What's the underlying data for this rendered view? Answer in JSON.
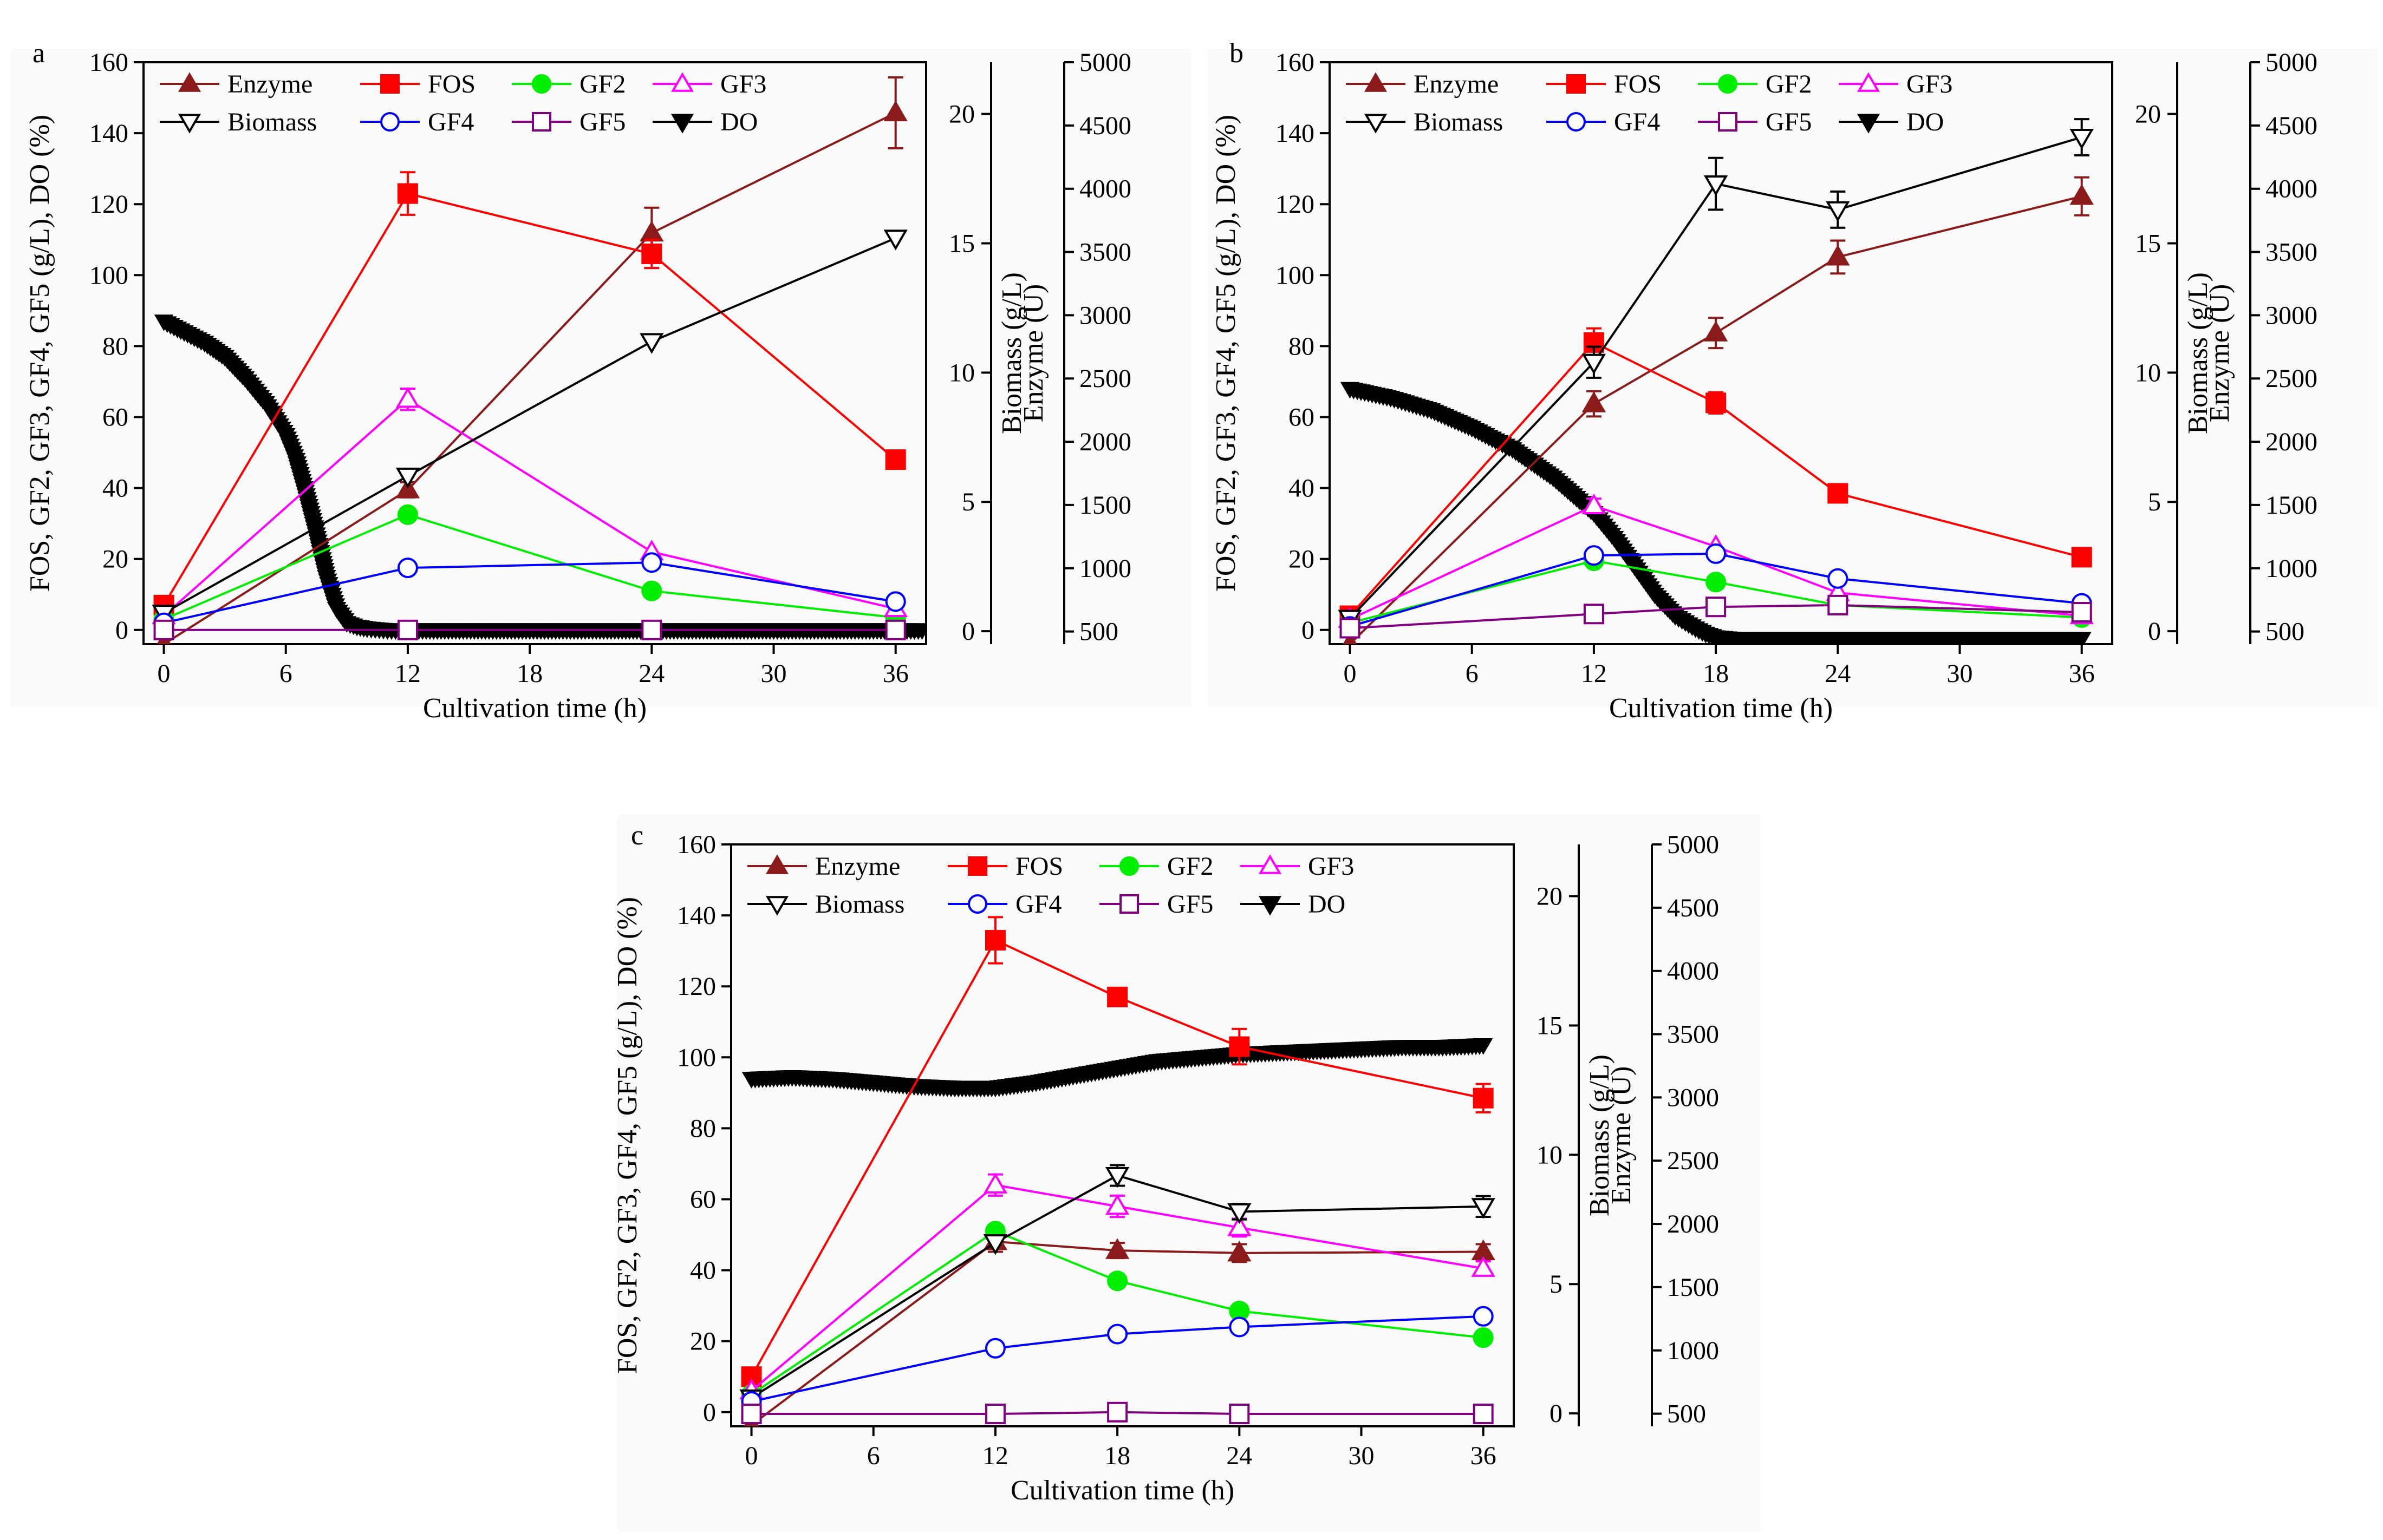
{
  "figure": {
    "series_styles": {
      "Enzyme": {
        "color": "#8b1a1a",
        "marker": "triangle-up",
        "filled": true
      },
      "FOS": {
        "color": "#ff0000",
        "marker": "square",
        "filled": true
      },
      "GF2": {
        "color": "#00ee00",
        "marker": "circle",
        "filled": true
      },
      "GF3": {
        "color": "#ff00ff",
        "marker": "triangle-up",
        "filled": false
      },
      "Biomass": {
        "color": "#000000",
        "marker": "triangle-down",
        "filled": false
      },
      "GF4": {
        "color": "#0000ff",
        "marker": "circle",
        "filled": false
      },
      "GF5": {
        "color": "#800080",
        "marker": "square",
        "filled": false
      },
      "DO": {
        "color": "#000000",
        "marker": "triangle-down",
        "filled": true
      }
    }
  },
  "chart_data": [
    {
      "type": "line",
      "panel": "a",
      "xlabel": "Cultivation time (h)",
      "ylabel_left": "FOS, GF2, GF3, GF4, GF5 (g/L), DO (%)",
      "ylabel_biomass": "Biomass (g/L)",
      "ylabel_enzyme": "Enzyme (U)",
      "xlim": [
        -1,
        37.5
      ],
      "xticks": [
        "0",
        "6",
        "12",
        "18",
        "24",
        "30",
        "36"
      ],
      "ylim_left": [
        -4,
        160
      ],
      "yticks_left": [
        "0",
        "20",
        "40",
        "60",
        "80",
        "100",
        "120",
        "140",
        "160"
      ],
      "ylim_biomass": [
        -0.5,
        22
      ],
      "yticks_biomass": [
        "0",
        "5",
        "10",
        "15",
        "20"
      ],
      "ylim_enzyme": [
        400,
        5000
      ],
      "yticks_enzyme": [
        "500",
        "1000",
        "1500",
        "2000",
        "2500",
        "3000",
        "3500",
        "4000",
        "4500",
        "5000"
      ],
      "legend_rows": [
        [
          "Enzyme",
          "FOS",
          "GF2",
          "GF3"
        ],
        [
          "Biomass",
          "GF4",
          "GF5",
          "DO"
        ]
      ],
      "series": [
        {
          "name": "Enzyme",
          "axis": "enzyme",
          "x": [
            0,
            12,
            24,
            36
          ],
          "values": [
            400,
            1620,
            3650,
            4600
          ],
          "err": [
            0,
            60,
            200,
            280
          ]
        },
        {
          "name": "FOS",
          "axis": "left",
          "x": [
            0,
            12,
            24,
            36
          ],
          "values": [
            7,
            123,
            106,
            48
          ],
          "err": [
            0,
            6,
            4,
            0
          ]
        },
        {
          "name": "GF2",
          "axis": "left",
          "x": [
            0,
            12,
            24,
            36
          ],
          "values": [
            3,
            32.5,
            11,
            3.5
          ],
          "err": [
            0,
            0,
            0,
            0
          ]
        },
        {
          "name": "GF3",
          "axis": "left",
          "x": [
            0,
            12,
            24,
            36
          ],
          "values": [
            4,
            65,
            22,
            6
          ],
          "err": [
            0,
            3,
            0,
            0
          ]
        },
        {
          "name": "Biomass",
          "axis": "biomass",
          "x": [
            0,
            12,
            24,
            36
          ],
          "values": [
            0.7,
            6.0,
            11.2,
            15.2
          ],
          "err": [
            0,
            0,
            0,
            0
          ]
        },
        {
          "name": "GF4",
          "axis": "left",
          "x": [
            0,
            12,
            24,
            36
          ],
          "values": [
            2,
            17.5,
            19,
            8
          ],
          "err": [
            0,
            0,
            0,
            0
          ]
        },
        {
          "name": "GF5",
          "axis": "left",
          "x": [
            0,
            12,
            24,
            36
          ],
          "values": [
            0,
            0,
            0,
            0
          ],
          "err": [
            0,
            0,
            0,
            0
          ]
        },
        {
          "name": "DO",
          "axis": "left",
          "x": [
            0,
            1,
            2,
            3,
            4,
            5,
            6,
            6.5,
            7,
            7.5,
            8,
            8.5,
            9,
            9.5,
            10,
            11,
            12,
            14,
            16,
            18,
            20,
            22,
            24,
            26,
            28,
            30,
            32,
            34,
            36,
            37.3
          ],
          "values": [
            87,
            84,
            81,
            77,
            71,
            64,
            55,
            48,
            38,
            27,
            15,
            6,
            2,
            1,
            0.5,
            0,
            0,
            0,
            0,
            0,
            0,
            0,
            0,
            0,
            0,
            0,
            0,
            0,
            0,
            0
          ]
        }
      ]
    },
    {
      "type": "line",
      "panel": "b",
      "xlabel": "Cultivation time (h)",
      "ylabel_left": "FOS, GF2, GF3, GF4, GF5 (g/L), DO (%)",
      "ylabel_biomass": "Biomass (g/L)",
      "ylabel_enzyme": "Enzyme (U)",
      "xlim": [
        -1,
        37.5
      ],
      "xticks": [
        "0",
        "6",
        "12",
        "18",
        "24",
        "30",
        "36"
      ],
      "ylim_left": [
        -4,
        160
      ],
      "yticks_left": [
        "0",
        "20",
        "40",
        "60",
        "80",
        "100",
        "120",
        "140",
        "160"
      ],
      "ylim_biomass": [
        -0.5,
        22
      ],
      "yticks_biomass": [
        "0",
        "5",
        "10",
        "15",
        "20"
      ],
      "ylim_enzyme": [
        400,
        5000
      ],
      "yticks_enzyme": [
        "500",
        "1000",
        "1500",
        "2000",
        "2500",
        "3000",
        "3500",
        "4000",
        "4500",
        "5000"
      ],
      "legend_rows": [
        [
          "Enzyme",
          "FOS",
          "GF2",
          "GF3"
        ],
        [
          "Biomass",
          "GF4",
          "GF5",
          "DO"
        ]
      ],
      "series": [
        {
          "name": "Enzyme",
          "axis": "enzyme",
          "x": [
            0,
            12,
            18,
            24,
            36
          ],
          "values": [
            400,
            2300,
            2860,
            3460,
            3940
          ],
          "err": [
            0,
            100,
            120,
            130,
            150
          ]
        },
        {
          "name": "FOS",
          "axis": "left",
          "x": [
            0,
            12,
            18,
            24,
            36
          ],
          "values": [
            4,
            81,
            64,
            38.5,
            20.5
          ],
          "err": [
            0,
            4,
            3,
            0,
            0
          ]
        },
        {
          "name": "GF2",
          "axis": "left",
          "x": [
            0,
            12,
            18,
            24,
            36
          ],
          "values": [
            2,
            19.5,
            13.5,
            7,
            3.5
          ],
          "err": [
            0,
            0,
            0,
            0,
            0
          ]
        },
        {
          "name": "GF3",
          "axis": "left",
          "x": [
            0,
            12,
            18,
            24,
            36
          ],
          "values": [
            3,
            35,
            23.5,
            10.5,
            4
          ],
          "err": [
            0,
            2,
            0,
            0,
            0
          ]
        },
        {
          "name": "Biomass",
          "axis": "biomass",
          "x": [
            0,
            12,
            18,
            24,
            36
          ],
          "values": [
            0.5,
            10.4,
            17.3,
            16.3,
            19.1
          ],
          "err": [
            0,
            0.6,
            1.0,
            0.7,
            0.7
          ]
        },
        {
          "name": "GF4",
          "axis": "left",
          "x": [
            0,
            12,
            18,
            24,
            36
          ],
          "values": [
            1,
            21,
            21.5,
            14.5,
            7.5
          ],
          "err": [
            0,
            0,
            0,
            0,
            0
          ]
        },
        {
          "name": "GF5",
          "axis": "left",
          "x": [
            0,
            12,
            18,
            24,
            36
          ],
          "values": [
            0.5,
            4.5,
            6.5,
            7,
            5
          ],
          "err": [
            0,
            0,
            0,
            0,
            0
          ]
        },
        {
          "name": "DO",
          "axis": "left",
          "x": [
            0,
            2,
            4,
            6,
            8,
            10,
            12,
            13,
            14,
            15,
            16,
            17,
            17.5,
            18,
            19,
            20,
            22,
            24,
            26,
            28,
            30,
            32,
            34,
            36
          ],
          "values": [
            68,
            65.5,
            62,
            57,
            51,
            43,
            33,
            26,
            18,
            10,
            4,
            0.5,
            -1,
            -2,
            -2.5,
            -2.5,
            -2.5,
            -2.5,
            -2.5,
            -2.5,
            -2.5,
            -2.5,
            -2.5,
            -2.5
          ]
        }
      ]
    },
    {
      "type": "line",
      "panel": "c",
      "xlabel": "Cultivation time (h)",
      "ylabel_left": "FOS, GF2, GF3, GF4, GF5 (g/L), DO (%)",
      "ylabel_biomass": "Biomass (g/L)",
      "ylabel_enzyme": "Enzyme (U)",
      "xlim": [
        -1,
        37.5
      ],
      "xticks": [
        "0",
        "6",
        "12",
        "18",
        "24",
        "30",
        "36"
      ],
      "ylim_left": [
        -4,
        160
      ],
      "yticks_left": [
        "0",
        "20",
        "40",
        "60",
        "80",
        "100",
        "120",
        "140",
        "160"
      ],
      "ylim_biomass": [
        -0.5,
        22
      ],
      "yticks_biomass": [
        "0",
        "5",
        "10",
        "15",
        "20"
      ],
      "ylim_enzyme": [
        400,
        5000
      ],
      "yticks_enzyme": [
        "500",
        "1000",
        "1500",
        "2000",
        "2500",
        "3000",
        "3500",
        "4000",
        "4500",
        "5000"
      ],
      "legend_rows": [
        [
          "Enzyme",
          "FOS",
          "GF2",
          "GF3"
        ],
        [
          "Biomass",
          "GF4",
          "GF5",
          "DO"
        ]
      ],
      "series": [
        {
          "name": "Enzyme",
          "axis": "enzyme",
          "x": [
            0,
            12,
            18,
            24,
            36
          ],
          "values": [
            410,
            1860,
            1790,
            1770,
            1780
          ],
          "err": [
            0,
            80,
            60,
            70,
            60
          ]
        },
        {
          "name": "FOS",
          "axis": "left",
          "x": [
            0,
            12,
            18,
            24,
            36
          ],
          "values": [
            10,
            133,
            117,
            103,
            88.5
          ],
          "err": [
            0,
            6.5,
            2.5,
            5,
            4
          ]
        },
        {
          "name": "GF2",
          "axis": "left",
          "x": [
            0,
            12,
            18,
            24,
            36
          ],
          "values": [
            5,
            51,
            37,
            28.5,
            21
          ],
          "err": [
            0,
            0,
            0,
            0,
            0
          ]
        },
        {
          "name": "GF3",
          "axis": "left",
          "x": [
            0,
            12,
            18,
            24,
            36
          ],
          "values": [
            6,
            64,
            58,
            52,
            40.5
          ],
          "err": [
            0,
            3,
            3,
            2.5,
            2
          ]
        },
        {
          "name": "Biomass",
          "axis": "biomass",
          "x": [
            0,
            12,
            18,
            24,
            36
          ],
          "values": [
            0.6,
            6.6,
            9.2,
            7.8,
            8.0
          ],
          "err": [
            0,
            0,
            0.4,
            0.3,
            0.4
          ]
        },
        {
          "name": "GF4",
          "axis": "left",
          "x": [
            0,
            12,
            18,
            24,
            36
          ],
          "values": [
            3,
            18,
            22,
            24,
            27
          ],
          "err": [
            0,
            0,
            0,
            0,
            0
          ]
        },
        {
          "name": "GF5",
          "axis": "left",
          "x": [
            0,
            12,
            18,
            24,
            36
          ],
          "values": [
            -0.5,
            -0.5,
            0,
            -0.5,
            -0.5
          ],
          "err": [
            0,
            0,
            0,
            0,
            0
          ]
        },
        {
          "name": "DO",
          "axis": "left",
          "x": [
            0,
            2,
            4,
            6,
            8,
            10,
            12,
            14,
            16,
            18,
            20,
            22,
            24,
            26,
            28,
            30,
            32,
            34,
            36
          ],
          "values": [
            94,
            94.5,
            94,
            93,
            92,
            91.5,
            91.5,
            93,
            95,
            97,
            99,
            100,
            101,
            101.5,
            102,
            102.5,
            103,
            103,
            103.5
          ]
        }
      ]
    }
  ]
}
